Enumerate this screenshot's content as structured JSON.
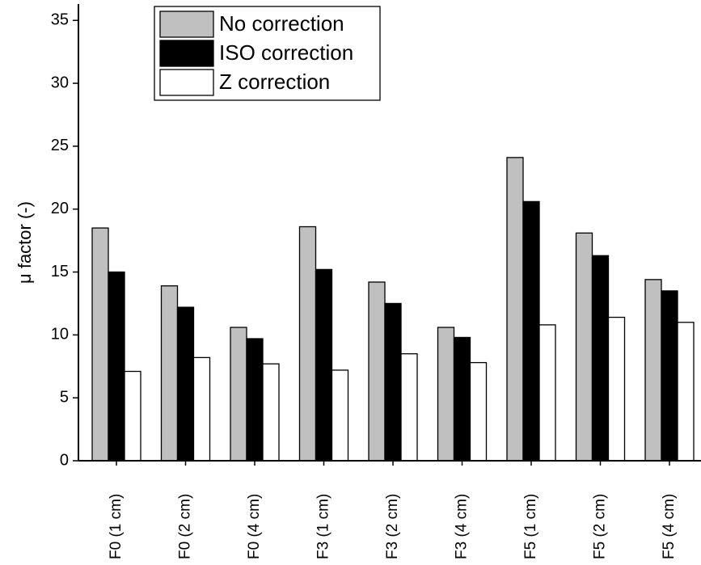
{
  "chart_data": {
    "type": "bar",
    "y_label": "μ factor (-)",
    "categories": [
      "F0 (1 cm)",
      "F0 (2 cm)",
      "F0 (4 cm)",
      "F3 (1 cm)",
      "F3 (2 cm)",
      "F3 (4 cm)",
      "F5 (1 cm)",
      "F5 (2 cm)",
      "F5 (4 cm)"
    ],
    "series": [
      {
        "name": "No correction",
        "color": "#c0c0c0",
        "values": [
          18.5,
          13.9,
          10.6,
          18.6,
          14.2,
          10.6,
          24.1,
          18.1,
          14.4
        ]
      },
      {
        "name": "ISO correction",
        "color": "#000000",
        "values": [
          15.0,
          12.2,
          9.7,
          15.2,
          12.5,
          9.8,
          20.6,
          16.3,
          13.5
        ]
      },
      {
        "name": "Z correction",
        "color": "#ffffff",
        "values": [
          7.1,
          8.2,
          7.7,
          7.2,
          8.5,
          7.8,
          10.8,
          11.4,
          11.0
        ]
      }
    ],
    "ylim": [
      0,
      36.3
    ],
    "yticks": [
      0,
      5,
      10,
      15,
      20,
      25,
      30,
      35
    ],
    "legend": "top-left"
  }
}
